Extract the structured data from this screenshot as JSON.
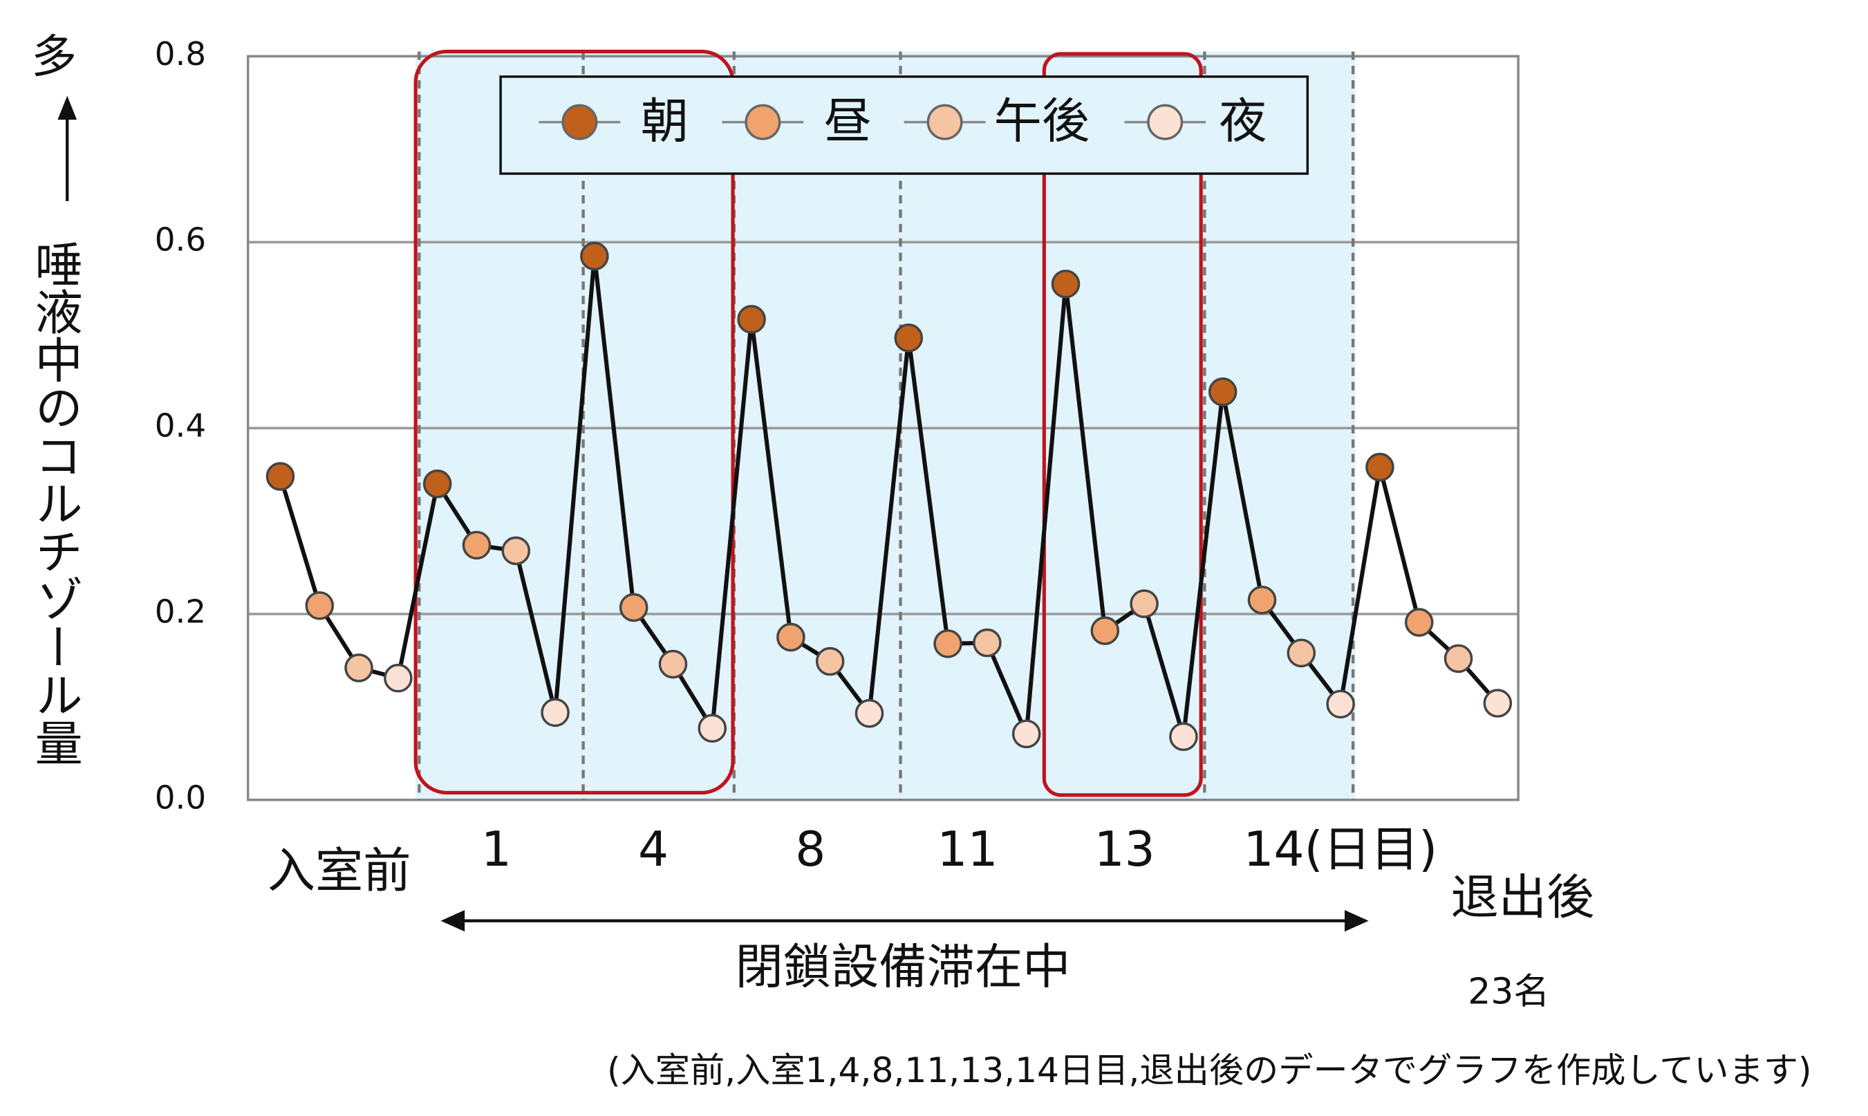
{
  "chart_data": {
    "type": "line",
    "y_axis_label": "唾液中のコルチゾール量",
    "y_axis_high_label": "多",
    "categories": [
      "入室前",
      "1",
      "4",
      "8",
      "11",
      "13",
      "14(日目)",
      "退出後"
    ],
    "series": [
      {
        "name": "朝",
        "color": "#c0601a",
        "values": [
          0.348,
          0.34,
          0.585,
          0.517,
          0.497,
          0.555,
          0.439,
          0.358
        ]
      },
      {
        "name": "昼",
        "color": "#f0a36e",
        "values": [
          0.209,
          0.274,
          0.207,
          0.175,
          0.168,
          0.182,
          0.215,
          0.191
        ]
      },
      {
        "name": "午後",
        "color": "#f5c4a2",
        "values": [
          0.142,
          0.268,
          0.146,
          0.149,
          0.169,
          0.211,
          0.158,
          0.152
        ]
      },
      {
        "name": "夜",
        "color": "#fbe2d4",
        "values": [
          0.131,
          0.094,
          0.077,
          0.093,
          0.071,
          0.068,
          0.103,
          0.104
        ]
      }
    ],
    "ylim": [
      0,
      0.8
    ],
    "yticks": [
      {
        "value": 0,
        "label": "0.0"
      },
      0.2,
      0.4,
      0.6,
      0.8
    ],
    "grid": true,
    "legend": "top",
    "period_label": "閉鎖設備滞在中",
    "sample_size": "23名",
    "note": "(入室前,入室1,4,8,11,13,14日目,退出後のデータでグラフを作成しています)"
  }
}
